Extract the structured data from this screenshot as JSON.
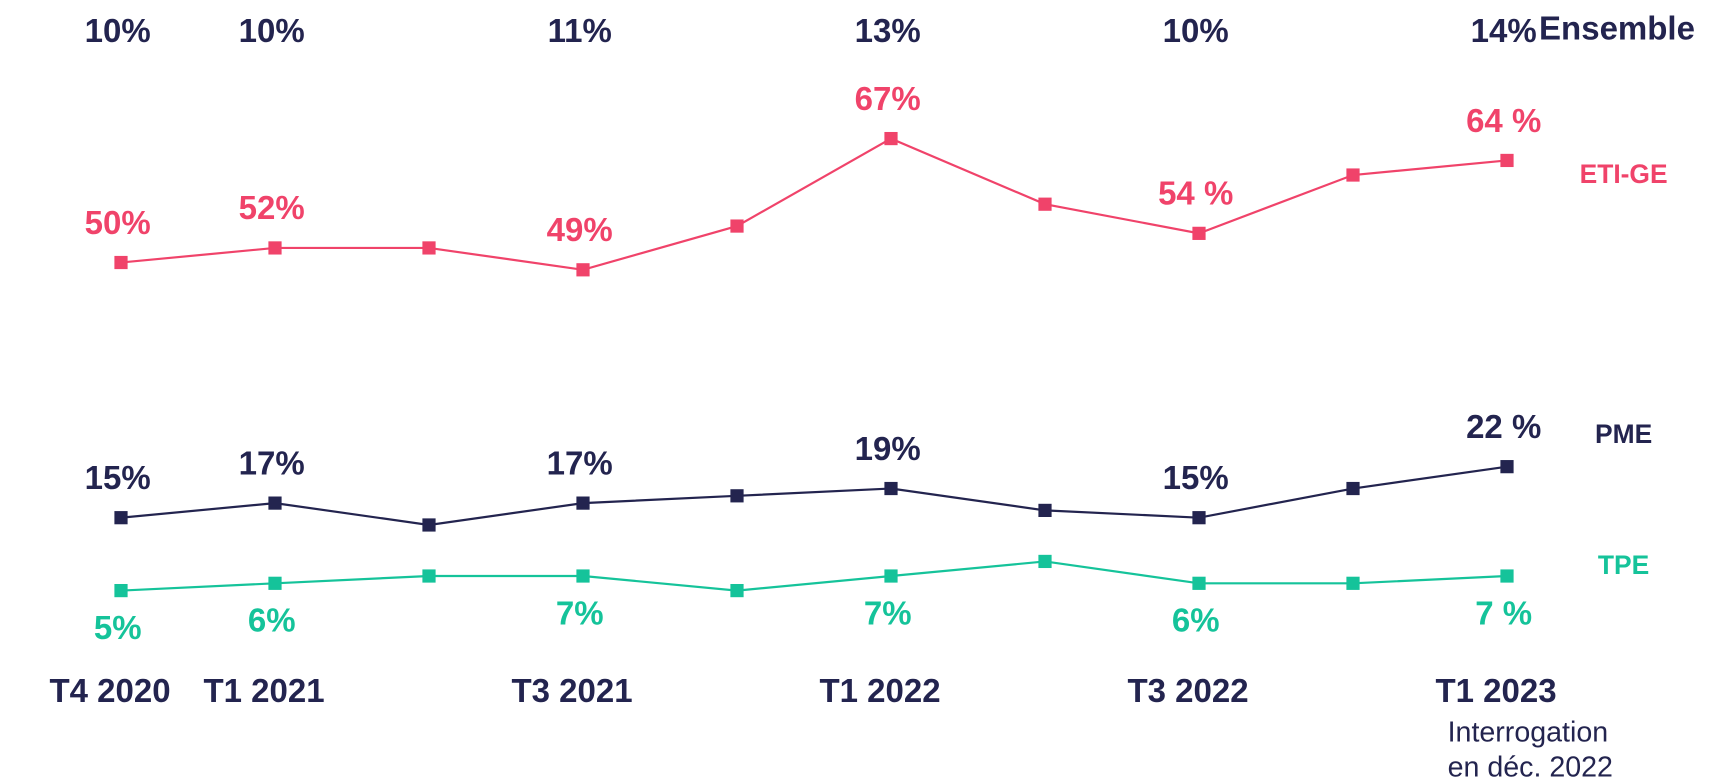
{
  "chart_data": {
    "type": "line",
    "categories": [
      "T4 2020",
      "T1 2021",
      null,
      "T3 2021",
      null,
      "T1 2022",
      null,
      "T3 2022",
      null,
      "T1 2023"
    ],
    "ylim": [
      0,
      86
    ],
    "footnote": [
      "Interrogation",
      "en déc. 2022"
    ],
    "series": [
      {
        "name": "Ensemble",
        "color": "#23244f",
        "line": false,
        "values": [
          10,
          10,
          null,
          11,
          null,
          13,
          null,
          10,
          null,
          14
        ],
        "value_labels": [
          "10%",
          "10%",
          null,
          "11%",
          null,
          "13%",
          null,
          "10%",
          null,
          "14%"
        ]
      },
      {
        "name": "ETI-GE",
        "color": "#f0436a",
        "line": true,
        "values": [
          50,
          52,
          52,
          49,
          55,
          67,
          58,
          54,
          62,
          64
        ],
        "value_labels": [
          "50%",
          "52%",
          null,
          "49%",
          null,
          "67%",
          null,
          "54 %",
          null,
          "64 %"
        ]
      },
      {
        "name": "PME",
        "color": "#23244f",
        "line": true,
        "values": [
          15,
          17,
          14,
          17,
          18,
          19,
          16,
          15,
          19,
          22
        ],
        "value_labels": [
          "15%",
          "17%",
          null,
          "17%",
          null,
          "19%",
          null,
          "15%",
          null,
          "22 %"
        ]
      },
      {
        "name": "TPE",
        "color": "#15c39a",
        "line": true,
        "values": [
          5,
          6,
          7,
          7,
          5,
          7,
          9,
          6,
          6,
          7
        ],
        "value_labels": [
          "5%",
          "6%",
          null,
          "7%",
          null,
          "7%",
          null,
          "6%",
          null,
          "7 %"
        ]
      }
    ]
  }
}
